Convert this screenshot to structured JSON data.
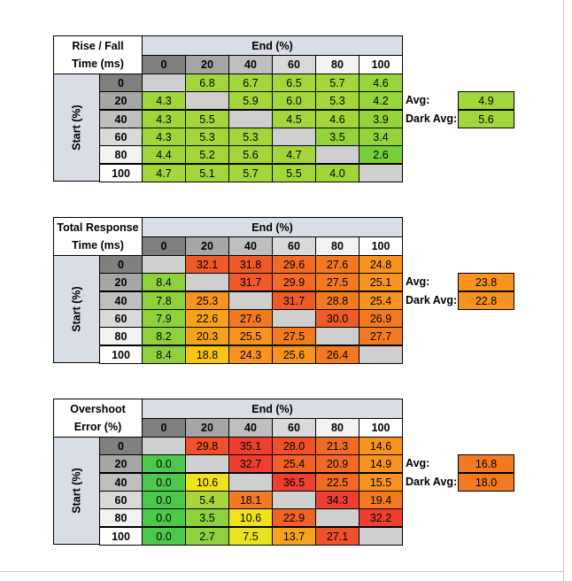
{
  "chart_data": [
    {
      "type": "table",
      "title_lines": [
        "Rise / Fall",
        "Time (ms)"
      ],
      "col_header": "End (%)",
      "row_header": "Start (%)",
      "columns": [
        "0",
        "20",
        "40",
        "60",
        "80",
        "100"
      ],
      "rows": [
        "0",
        "20",
        "40",
        "60",
        "80",
        "100"
      ],
      "values": [
        [
          "",
          "6.8",
          "6.7",
          "6.5",
          "5.7",
          "4.6"
        ],
        [
          "4.3",
          "",
          "5.9",
          "6.0",
          "5.3",
          "4.2"
        ],
        [
          "4.3",
          "5.5",
          "",
          "4.5",
          "4.6",
          "3.9"
        ],
        [
          "4.3",
          "5.3",
          "5.3",
          "",
          "3.5",
          "3.4"
        ],
        [
          "4.4",
          "5.2",
          "5.6",
          "4.7",
          "",
          "2.6"
        ],
        [
          "4.7",
          "5.1",
          "5.7",
          "5.5",
          "4.0",
          ""
        ]
      ],
      "colors": [
        [
          "#cfcfcf",
          "#a3d63b",
          "#a3d63b",
          "#a3d63b",
          "#a3d63b",
          "#97d63a"
        ],
        [
          "#9fd63a",
          "#cfcfcf",
          "#a3d63b",
          "#a3d63b",
          "#a3d63b",
          "#97d63a"
        ],
        [
          "#9fd63a",
          "#a3d63b",
          "#cfcfcf",
          "#a3d63b",
          "#a3d63b",
          "#92d43a"
        ],
        [
          "#9fd63a",
          "#a3d63b",
          "#a3d63b",
          "#cfcfcf",
          "#92d43a",
          "#92d43a"
        ],
        [
          "#9fd63a",
          "#a3d63b",
          "#a3d63b",
          "#a3d63b",
          "#cfcfcf",
          "#78cf3a"
        ],
        [
          "#a3d63b",
          "#a3d63b",
          "#a3d63b",
          "#a3d63b",
          "#9fd63a",
          "#cfcfcf"
        ]
      ],
      "avg_label": "Avg:",
      "avg": "4.9",
      "avg_color": "#a3d63b",
      "dark_avg_label": "Dark Avg:",
      "dark_avg": "5.6",
      "dark_avg_color": "#a3d63b"
    },
    {
      "type": "table",
      "title_lines": [
        "Total Response",
        "Time (ms)"
      ],
      "col_header": "End (%)",
      "row_header": "Start (%)",
      "columns": [
        "0",
        "20",
        "40",
        "60",
        "80",
        "100"
      ],
      "rows": [
        "0",
        "20",
        "40",
        "60",
        "80",
        "100"
      ],
      "values": [
        [
          "",
          "32.1",
          "31.8",
          "29.6",
          "27.6",
          "24.8"
        ],
        [
          "8.4",
          "",
          "31.7",
          "29.9",
          "27.5",
          "25.1"
        ],
        [
          "7.8",
          "25.3",
          "",
          "31.7",
          "28.8",
          "25.4"
        ],
        [
          "7.9",
          "22.6",
          "27.6",
          "",
          "30.0",
          "26.9"
        ],
        [
          "8.2",
          "20.3",
          "25.5",
          "27.5",
          "",
          "27.7"
        ],
        [
          "8.4",
          "18.8",
          "24.3",
          "25.6",
          "26.4",
          ""
        ]
      ],
      "colors": [
        [
          "#cfcfcf",
          "#f05a28",
          "#f05a28",
          "#f26b25",
          "#f47a22",
          "#f7931e"
        ],
        [
          "#8fd13c",
          "#cfcfcf",
          "#f05a28",
          "#f26b25",
          "#f47a22",
          "#f7931e"
        ],
        [
          "#8fd13c",
          "#f7931e",
          "#cfcfcf",
          "#f05a28",
          "#f47a22",
          "#f7931e"
        ],
        [
          "#8fd13c",
          "#f7a21b",
          "#f47a22",
          "#cfcfcf",
          "#f05a28",
          "#f47a22"
        ],
        [
          "#8fd13c",
          "#f7a21b",
          "#f7931e",
          "#f47a22",
          "#cfcfcf",
          "#f47a22"
        ],
        [
          "#8fd13c",
          "#f8c515",
          "#f7931e",
          "#f7931e",
          "#f47a22",
          "#cfcfcf"
        ]
      ],
      "avg_label": "Avg:",
      "avg": "23.8",
      "avg_color": "#f7931e",
      "dark_avg_label": "Dark Avg:",
      "dark_avg": "22.8",
      "dark_avg_color": "#f7931e"
    },
    {
      "type": "table",
      "title_lines": [
        "Overshoot",
        "Error (%)"
      ],
      "col_header": "End (%)",
      "row_header": "Start (%)",
      "columns": [
        "0",
        "20",
        "40",
        "60",
        "80",
        "100"
      ],
      "rows": [
        "0",
        "20",
        "40",
        "60",
        "80",
        "100"
      ],
      "values": [
        [
          "",
          "29.8",
          "35.1",
          "28.0",
          "21.3",
          "14.6"
        ],
        [
          "0.0",
          "",
          "32.7",
          "25.4",
          "20.9",
          "14.9"
        ],
        [
          "0.0",
          "10.6",
          "",
          "36.5",
          "22.5",
          "15.5"
        ],
        [
          "0.0",
          "5.4",
          "18.1",
          "",
          "34.3",
          "19.4"
        ],
        [
          "0.0",
          "3.5",
          "10.6",
          "22.9",
          "",
          "32.2"
        ],
        [
          "0.0",
          "2.7",
          "7.5",
          "13.7",
          "27.1",
          ""
        ]
      ],
      "colors": [
        [
          "#cfcfcf",
          "#f0502a",
          "#ee4030",
          "#f0502a",
          "#f26b25",
          "#f7931e"
        ],
        [
          "#4cc94c",
          "#cfcfcf",
          "#ee4030",
          "#f26125",
          "#f26b25",
          "#f7931e"
        ],
        [
          "#4cc94c",
          "#f0e21c",
          "#cfcfcf",
          "#ee4030",
          "#f26b25",
          "#f7931e"
        ],
        [
          "#4cc94c",
          "#a8d63a",
          "#f47a22",
          "#cfcfcf",
          "#ee4030",
          "#f47a22"
        ],
        [
          "#4cc94c",
          "#8fd13c",
          "#f0e21c",
          "#f26125",
          "#cfcfcf",
          "#ee4030"
        ],
        [
          "#4cc94c",
          "#8fd13c",
          "#e9e31d",
          "#f7a21b",
          "#f0502a",
          "#cfcfcf"
        ]
      ],
      "avg_label": "Avg:",
      "avg": "16.8",
      "avg_color": "#f47a22",
      "dark_avg_label": "Dark Avg:",
      "dark_avg": "18.0",
      "dark_avg_color": "#f47a22"
    }
  ],
  "header_colors": [
    "#7f7f7f",
    "#a6a6a6",
    "#bfbfbf",
    "#d9d9d9",
    "#f2f2f2",
    "#ffffff"
  ]
}
